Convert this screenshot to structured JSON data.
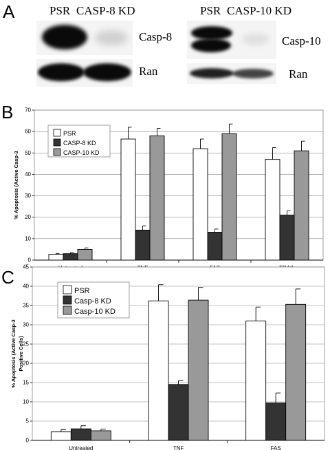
{
  "panel_a": {
    "letter": "A",
    "left": {
      "lane_labels": [
        "PSR",
        "CASP-8 KD"
      ],
      "target_label": "Casp-8",
      "control_label": "Ran",
      "target_band_intensity": [
        1.0,
        0.15
      ],
      "control_band_intensity": [
        1.0,
        1.0
      ]
    },
    "right": {
      "lane_labels": [
        "PSR",
        "CASP-10 KD"
      ],
      "target_label": "Casp-10",
      "control_label": "Ran",
      "target_band_intensity": [
        1.0,
        0.08
      ],
      "control_band_intensity": [
        0.9,
        0.75
      ]
    }
  },
  "panel_b": {
    "letter": "B",
    "chart_data": {
      "type": "bar",
      "categories": [
        "Untreated",
        "TNF",
        "FAS",
        "TRAIL"
      ],
      "ylabel": "% Apoptosis (Active Casp-3",
      "ylim": [
        0,
        70
      ],
      "yticks": [
        0,
        10,
        20,
        30,
        40,
        50,
        60,
        70
      ],
      "grid": true,
      "legend_position": "top-left",
      "series": [
        {
          "name": "PSR",
          "color": "#ffffff",
          "values": [
            2.7,
            56.5,
            52,
            47
          ],
          "errors": [
            0.4,
            5.5,
            4.5,
            5.5
          ]
        },
        {
          "name": "CASP-8 KD",
          "color": "#333333",
          "values": [
            3,
            14,
            13,
            21
          ],
          "errors": [
            0.5,
            2,
            1.5,
            2
          ]
        },
        {
          "name": "CASP-10 KD",
          "color": "#999999",
          "values": [
            5,
            58,
            59,
            51
          ],
          "errors": [
            0.7,
            3.5,
            4.5,
            4.5
          ]
        }
      ]
    }
  },
  "panel_c": {
    "letter": "C",
    "chart_data": {
      "type": "bar",
      "categories": [
        "Untreated",
        "TNF",
        "FAS"
      ],
      "ylabel_lines": [
        "% Apoptosis (Active Casp-3",
        "Positive Cells)"
      ],
      "ylim": [
        0,
        45
      ],
      "yticks": [
        0,
        5,
        10,
        15,
        20,
        25,
        30,
        35,
        40,
        45
      ],
      "grid": true,
      "legend_position": "top-left",
      "series": [
        {
          "name": "PSR",
          "color": "#ffffff",
          "values": [
            2.2,
            36.2,
            31
          ],
          "errors": [
            0.6,
            4.2,
            3.6
          ]
        },
        {
          "name": "Casp-8 KD",
          "color": "#333333",
          "values": [
            3,
            14.5,
            9.7
          ],
          "errors": [
            0.8,
            1,
            2.6
          ]
        },
        {
          "name": "Casp-10 KD",
          "color": "#999999",
          "values": [
            2.5,
            36.4,
            35.3
          ],
          "errors": [
            0.4,
            3.3,
            4
          ]
        }
      ]
    }
  }
}
